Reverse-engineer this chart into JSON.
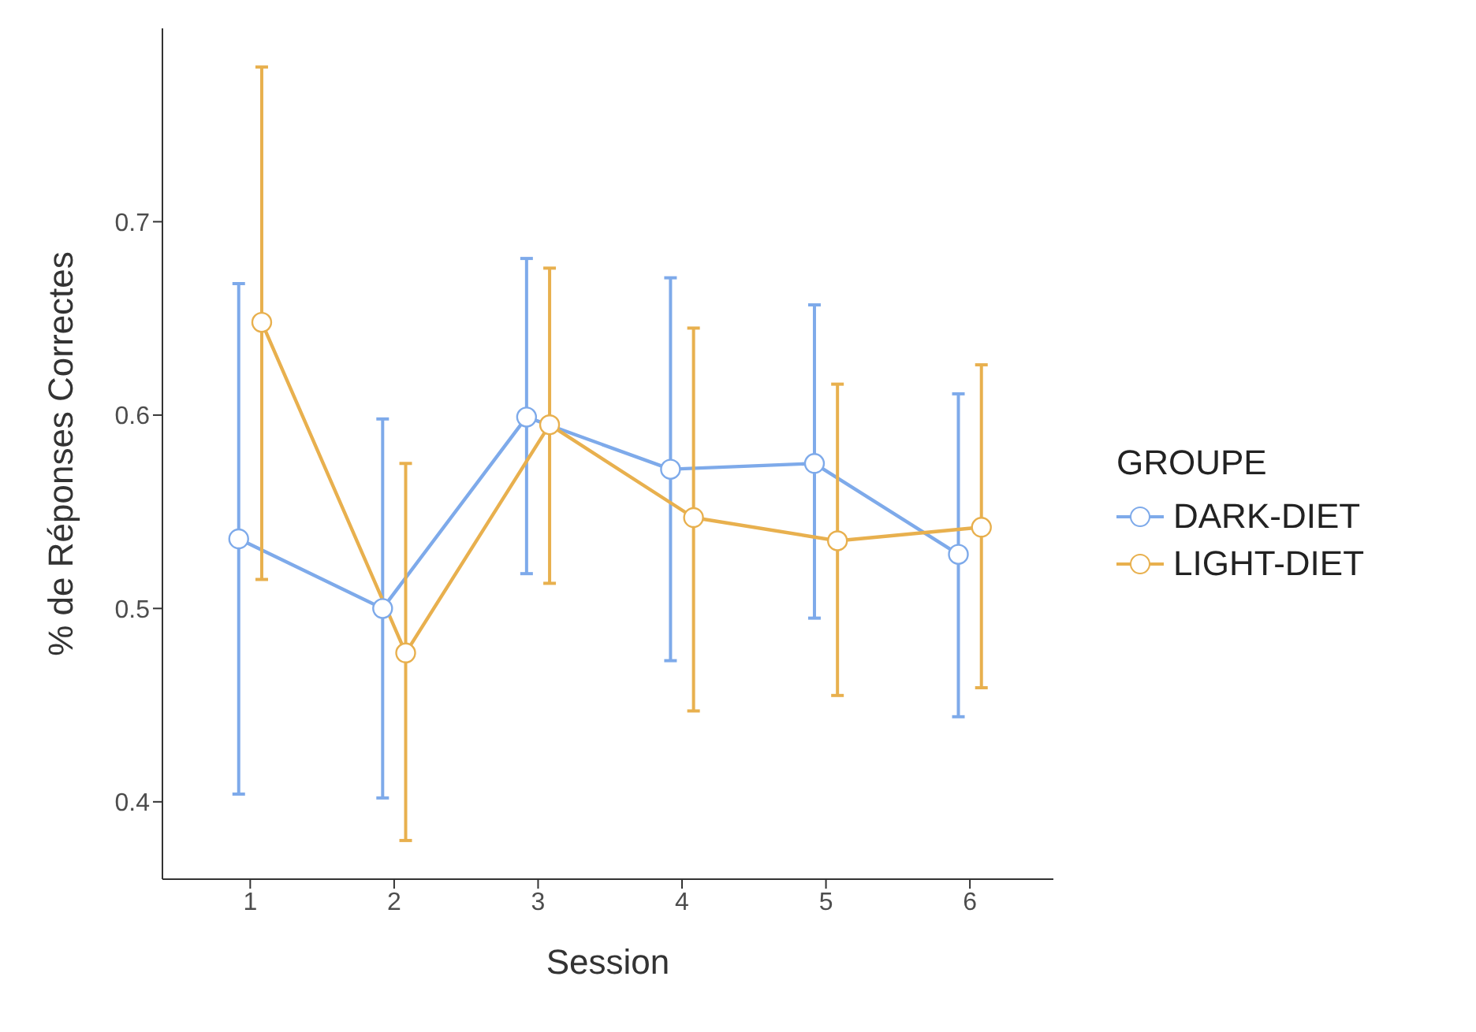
{
  "chart_data": {
    "type": "line",
    "xlabel": "Session",
    "ylabel": "% de Réponses Correctes",
    "legend_title": "GROUPE",
    "xlim": [
      0.39,
      6.58
    ],
    "xticks": [
      1,
      2,
      3,
      4,
      5,
      6
    ],
    "ylim": [
      0.36,
      0.8
    ],
    "yticks": [
      0.4,
      0.5,
      0.6,
      0.7
    ],
    "series": [
      {
        "name": "DARK-DIET",
        "color": "#7eaaea",
        "x": [
          0.92,
          1.92,
          2.92,
          3.92,
          4.92,
          5.92
        ],
        "values": [
          0.536,
          0.5,
          0.599,
          0.572,
          0.575,
          0.528
        ],
        "errors": [
          [
            0.404,
            0.668
          ],
          [
            0.402,
            0.598
          ],
          [
            0.518,
            0.681
          ],
          [
            0.473,
            0.671
          ],
          [
            0.495,
            0.657
          ],
          [
            0.444,
            0.611
          ]
        ]
      },
      {
        "name": "LIGHT-DIET",
        "color": "#e8b04e",
        "x": [
          1.08,
          2.08,
          3.08,
          4.08,
          5.08,
          6.08
        ],
        "values": [
          0.648,
          0.477,
          0.595,
          0.547,
          0.535,
          0.542
        ],
        "errors": [
          [
            0.515,
            0.78
          ],
          [
            0.38,
            0.575
          ],
          [
            0.513,
            0.676
          ],
          [
            0.447,
            0.645
          ],
          [
            0.455,
            0.616
          ],
          [
            0.459,
            0.626
          ]
        ]
      }
    ],
    "marker": "circle",
    "legend": "right",
    "grid": false
  }
}
